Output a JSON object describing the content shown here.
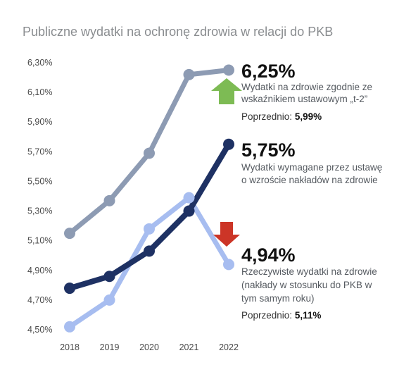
{
  "chart_data": {
    "type": "line",
    "title": "Publiczne wydatki na ochronę zdrowia w relacji do PKB",
    "xlabel": "",
    "ylabel": "",
    "categories": [
      "2018",
      "2019",
      "2020",
      "2021",
      "2022"
    ],
    "y_ticks": [
      "4,50%",
      "4,70%",
      "4,90%",
      "5,10%",
      "5,30%",
      "5,50%",
      "5,70%",
      "5,90%",
      "6,10%",
      "6,30%"
    ],
    "ylim": [
      4.5,
      6.3
    ],
    "grid": false,
    "legend": "none",
    "series": [
      {
        "values": [
          5.15,
          5.37,
          5.69,
          6.22,
          6.25
        ],
        "color": "#8d9bb3",
        "label": {
          "value": "6,25%",
          "desc": [
            "Wydatki na zdrowie zgodnie ze",
            "wskaźnikiem ustawowym „t-2”"
          ],
          "prev_label": "Poprzednio:",
          "prev_value": "5,99%"
        }
      },
      {
        "values": [
          4.78,
          4.86,
          5.03,
          5.3,
          5.75
        ],
        "color": "#1e3163",
        "label": {
          "value": "5,75%",
          "desc": [
            "Wydatki wymagane przez ustawę",
            "o wzroście nakładów na zdrowie"
          ],
          "prev_label": "",
          "prev_value": ""
        }
      },
      {
        "values": [
          4.52,
          4.7,
          5.18,
          5.39,
          4.94
        ],
        "color": "#a7bdf0",
        "label": {
          "value": "4,94%",
          "desc": [
            "Rzeczywiste wydatki na zdrowie",
            "(nakłady w stosunku do PKB w",
            "tym samym roku)"
          ],
          "prev_label": "Poprzednio:",
          "prev_value": "5,11%"
        }
      }
    ]
  },
  "indicators": {
    "up_arrow": {
      "icon": "arrow-up-icon",
      "color": "#7dbb54"
    },
    "down_arrow": {
      "icon": "arrow-down-icon",
      "color": "#cc3527"
    }
  }
}
